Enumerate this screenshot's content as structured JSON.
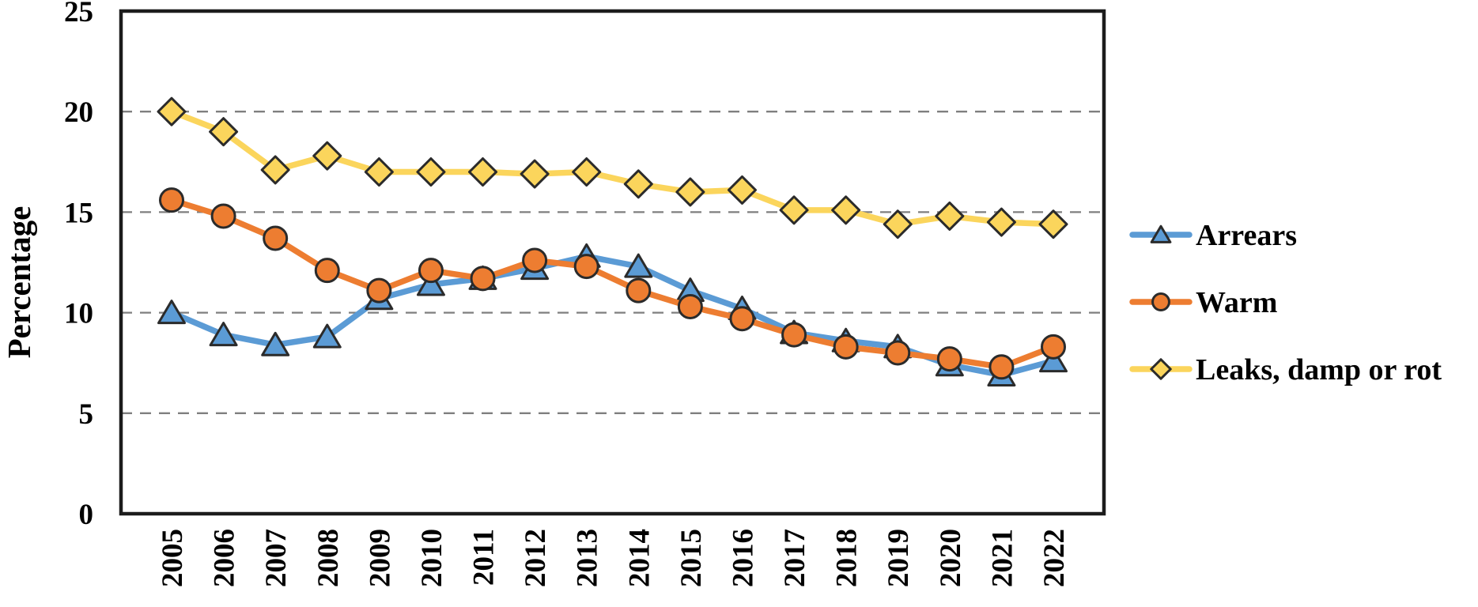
{
  "chart_data": {
    "type": "line",
    "title": "",
    "ylabel": "Percentage",
    "xlabel": "",
    "ylim": [
      0,
      25
    ],
    "yticks": [
      0,
      5,
      10,
      15,
      20,
      25
    ],
    "grid": "horizontal-dashed",
    "legend_position": "right",
    "categories": [
      "2005",
      "2006",
      "2007",
      "2008",
      "2009",
      "2010",
      "2011",
      "2012",
      "2013",
      "2014",
      "2015",
      "2016",
      "2017",
      "2018",
      "2019",
      "2020",
      "2021",
      "2022"
    ],
    "series": [
      {
        "name": "Arrears",
        "marker": "triangle",
        "color": "#5B9BD5",
        "values": [
          10.0,
          8.9,
          8.4,
          8.8,
          10.7,
          11.4,
          11.7,
          12.2,
          12.8,
          12.3,
          11.1,
          10.2,
          9.0,
          8.6,
          8.3,
          7.4,
          6.9,
          7.6
        ]
      },
      {
        "name": "Warm",
        "marker": "circle",
        "color": "#ED7D31",
        "values": [
          15.6,
          14.8,
          13.7,
          12.1,
          11.1,
          12.1,
          11.7,
          12.6,
          12.3,
          11.1,
          10.3,
          9.7,
          8.9,
          8.3,
          8.0,
          7.7,
          7.3,
          8.3
        ]
      },
      {
        "name": "Leaks, damp or rot",
        "marker": "diamond",
        "color": "#FBD55C",
        "values": [
          20.0,
          19.0,
          17.1,
          17.8,
          17.0,
          17.0,
          17.0,
          16.9,
          17.0,
          16.4,
          16.0,
          16.1,
          15.1,
          15.1,
          14.4,
          14.8,
          14.5,
          14.4
        ]
      }
    ],
    "colors": {
      "gridline": "#7F7F7F",
      "axis_frame": "#1C1C1C",
      "marker_stroke": "#2B2B2B",
      "text": "#000000"
    }
  }
}
